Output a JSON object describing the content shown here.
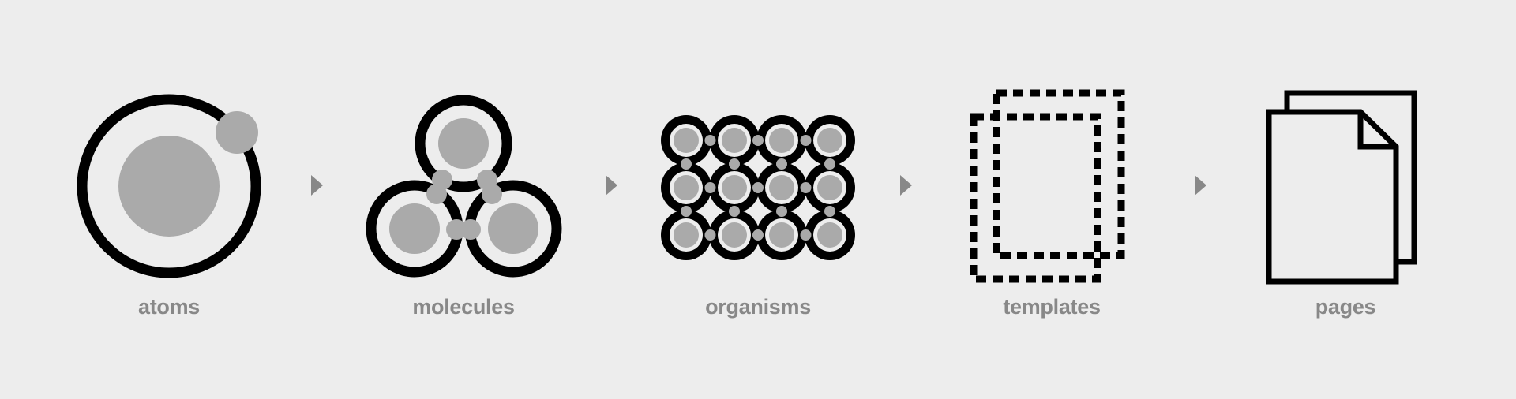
{
  "stages": [
    {
      "label": "atoms",
      "icon": "atom-icon"
    },
    {
      "label": "molecules",
      "icon": "molecule-icon"
    },
    {
      "label": "organisms",
      "icon": "organism-icon"
    },
    {
      "label": "templates",
      "icon": "template-icon"
    },
    {
      "label": "pages",
      "icon": "pages-icon"
    }
  ],
  "colors": {
    "background": "#ededed",
    "stroke": "#000000",
    "fill": "#aaaaaa",
    "label": "#888888",
    "arrow": "#888888"
  }
}
